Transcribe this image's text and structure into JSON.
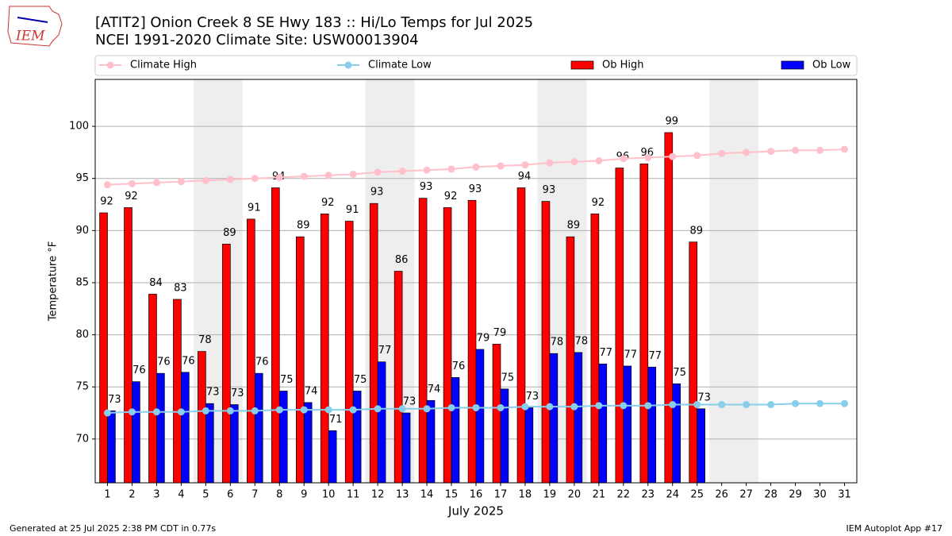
{
  "logo_text": "IEM",
  "footer_left": "Generated at 25 Jul 2025 2:38 PM CDT in 0.77s",
  "footer_right": "IEM Autoplot App #17",
  "chart_data": {
    "type": "bar",
    "title": "[ATIT2] Onion Creek 8 SE Hwy 183 :: Hi/Lo Temps for Jul 2025",
    "subtitle": "NCEI 1991-2020 Climate Site: USW00013904",
    "x_label": "July 2025",
    "y_label": "Temperature °F",
    "categories": [
      "1",
      "2",
      "3",
      "4",
      "5",
      "6",
      "7",
      "8",
      "9",
      "10",
      "11",
      "12",
      "13",
      "14",
      "15",
      "16",
      "17",
      "18",
      "19",
      "20",
      "21",
      "22",
      "23",
      "24",
      "25",
      "26",
      "27",
      "28",
      "29",
      "30",
      "31"
    ],
    "shaded_categories": [
      "5",
      "6",
      "12",
      "13",
      "19",
      "20",
      "26",
      "27"
    ],
    "ylim": [
      65.8,
      104.5
    ],
    "yticks": [
      70,
      75,
      80,
      85,
      90,
      95,
      100
    ],
    "grid": true,
    "series": [
      {
        "name": "Climate High",
        "color": "#ffc0cb",
        "type": "line",
        "values": [
          94.4,
          94.5,
          94.6,
          94.7,
          94.8,
          94.9,
          95.0,
          95.1,
          95.2,
          95.3,
          95.4,
          95.6,
          95.7,
          95.8,
          95.9,
          96.1,
          96.2,
          96.3,
          96.5,
          96.6,
          96.7,
          96.9,
          97.0,
          97.1,
          97.2,
          97.4,
          97.5,
          97.6,
          97.7,
          97.7,
          97.8
        ]
      },
      {
        "name": "Climate Low",
        "color": "#87ceeb",
        "type": "line",
        "values": [
          72.5,
          72.6,
          72.6,
          72.6,
          72.7,
          72.7,
          72.7,
          72.8,
          72.8,
          72.8,
          72.8,
          72.9,
          72.9,
          72.9,
          73.0,
          73.0,
          73.0,
          73.1,
          73.1,
          73.1,
          73.2,
          73.2,
          73.2,
          73.3,
          73.3,
          73.3,
          73.3,
          73.3,
          73.4,
          73.4,
          73.4
        ]
      },
      {
        "name": "Ob High",
        "color": "#ff0000",
        "type": "bar",
        "values": [
          91.7,
          92.2,
          83.9,
          83.4,
          78.4,
          88.7,
          91.1,
          94.1,
          89.4,
          91.6,
          90.9,
          92.6,
          86.1,
          93.1,
          92.2,
          92.9,
          79.1,
          94.1,
          92.8,
          89.4,
          91.6,
          96.0,
          96.4,
          99.4,
          88.9,
          null,
          null,
          null,
          null,
          null,
          null
        ],
        "value_labels": [
          "92",
          "92",
          "84",
          "83",
          "78",
          "89",
          "91",
          "94",
          "89",
          "92",
          "91",
          "93",
          "86",
          "93",
          "92",
          "93",
          "79",
          "94",
          "93",
          "89",
          "92",
          "96",
          "96",
          "99",
          "89",
          null,
          null,
          null,
          null,
          null,
          null
        ]
      },
      {
        "name": "Ob Low",
        "color": "#0000ff",
        "type": "bar",
        "values": [
          72.7,
          75.5,
          76.3,
          76.4,
          73.4,
          73.3,
          76.3,
          74.6,
          73.5,
          70.8,
          74.6,
          77.4,
          72.5,
          73.7,
          75.9,
          78.6,
          74.8,
          73.0,
          78.2,
          78.3,
          77.2,
          77.0,
          76.9,
          75.3,
          72.9,
          null,
          null,
          null,
          null,
          null,
          null
        ],
        "value_labels": [
          "73",
          "76",
          "76",
          "76",
          "73",
          "73",
          "76",
          "75",
          "74",
          "71",
          "75",
          "77",
          "73",
          "74",
          "76",
          "79",
          "75",
          "73",
          "78",
          "78",
          "77",
          "77",
          "77",
          "75",
          "73",
          null,
          null,
          null,
          null,
          null,
          null
        ]
      }
    ]
  }
}
